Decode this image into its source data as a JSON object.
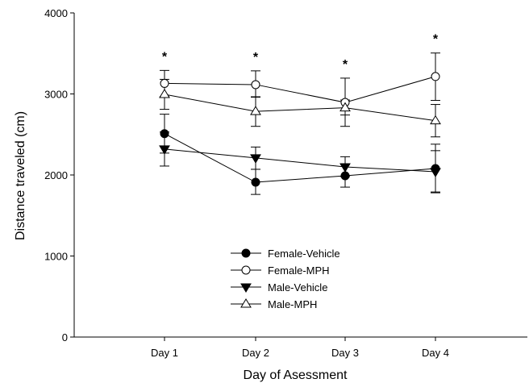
{
  "chart_data": {
    "type": "line",
    "title": "",
    "xlabel": "Day of Asessment",
    "ylabel": "Distance traveled (cm)",
    "categories": [
      "Day 1",
      "Day 2",
      "Day 3",
      "Day 4"
    ],
    "ylim": [
      0,
      4000
    ],
    "yticks": [
      "0",
      "1000",
      "2000",
      "3000",
      "4000"
    ],
    "grid": false,
    "legend_position": "bottom-center",
    "series": [
      {
        "name": "Female-Vehicle",
        "marker": "circle-filled",
        "values": [
          2510,
          1910,
          1990,
          2080
        ],
        "err_upper": [
          2750,
          2070,
          2130,
          2300
        ],
        "err_lower": [
          2270,
          1760,
          1850,
          1790
        ]
      },
      {
        "name": "Female-MPH",
        "marker": "circle-open",
        "values": [
          3130,
          3115,
          2895,
          3215
        ],
        "err_upper": [
          3290,
          3285,
          3195,
          3505
        ],
        "err_lower": [
          2970,
          2960,
          2600,
          2920
        ]
      },
      {
        "name": "Male-Vehicle",
        "marker": "triangle-down-filled",
        "values": [
          2320,
          2210,
          2100,
          2040
        ],
        "err_upper": [
          2530,
          2345,
          2225,
          2380
        ],
        "err_lower": [
          2110,
          2070,
          1980,
          1780
        ]
      },
      {
        "name": "Male-MPH",
        "marker": "triangle-up-open",
        "values": [
          2995,
          2785,
          2830,
          2670
        ],
        "err_upper": [
          3180,
          2965,
          2925,
          2870
        ],
        "err_lower": [
          2810,
          2600,
          2740,
          2470
        ]
      }
    ],
    "annotations": [
      {
        "category": "Day 1",
        "text": "*"
      },
      {
        "category": "Day 2",
        "text": "*"
      },
      {
        "category": "Day 3",
        "text": "*"
      },
      {
        "category": "Day 4",
        "text": "*"
      }
    ]
  }
}
